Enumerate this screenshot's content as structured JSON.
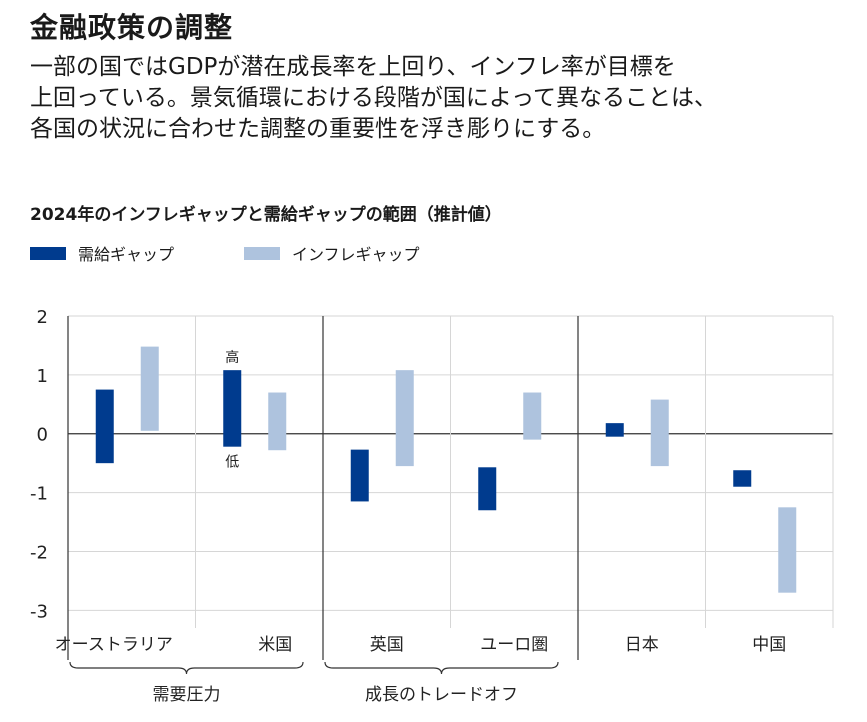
{
  "header": {
    "title": "金融政策の調整",
    "lead_lines": [
      "一部の国ではGDPが潜在成長率を上回り、インフレ率が目標を",
      "上回っている。景気循環における段階が国によって異なることは、",
      "各国の状況に合わせた調整の重要性を浮き彫りにする。"
    ]
  },
  "colors": {
    "demand_gap": "#003b8e",
    "inflation_gap": "#aec3de"
  },
  "chart_data": {
    "type": "range-bar",
    "title": "2024年のインフレギャップと需給ギャップの範囲（推計値）",
    "legend": [
      {
        "key": "demand",
        "label": "需給ギャップ",
        "color": "#003b8e"
      },
      {
        "key": "inflation",
        "label": "インフレギャップ",
        "color": "#aec3de"
      }
    ],
    "ylim": [
      -3.3,
      2
    ],
    "yticks": [
      2,
      1,
      0,
      -1,
      -2,
      -3
    ],
    "yticklabels": [
      "2",
      "1",
      "0",
      "-1",
      "-2",
      "-3"
    ],
    "categories": [
      "オーストラリア",
      "米国",
      "英国",
      "ユーロ圏",
      "日本",
      "中国"
    ],
    "series": [
      {
        "key": "demand",
        "name": "需給ギャップ",
        "ranges": [
          [
            -0.5,
            0.75
          ],
          [
            -0.22,
            1.08
          ],
          [
            -1.15,
            -0.27
          ],
          [
            -1.3,
            -0.57
          ],
          [
            -0.05,
            0.18
          ],
          [
            -0.9,
            -0.62
          ]
        ]
      },
      {
        "key": "inflation",
        "name": "インフレギャップ",
        "ranges": [
          [
            0.05,
            1.48
          ],
          [
            -0.28,
            0.7
          ],
          [
            -0.55,
            1.08
          ],
          [
            -0.1,
            0.7
          ],
          [
            -0.55,
            0.58
          ],
          [
            -2.7,
            -1.25
          ]
        ]
      }
    ],
    "annotations": {
      "high": "高",
      "low": "低"
    },
    "groups": [
      {
        "label": "需要圧力",
        "categories": [
          0,
          1
        ]
      },
      {
        "label": "成長のトレードオフ",
        "categories": [
          2,
          3
        ]
      },
      {
        "label": "",
        "categories": [
          4,
          5
        ]
      }
    ]
  }
}
